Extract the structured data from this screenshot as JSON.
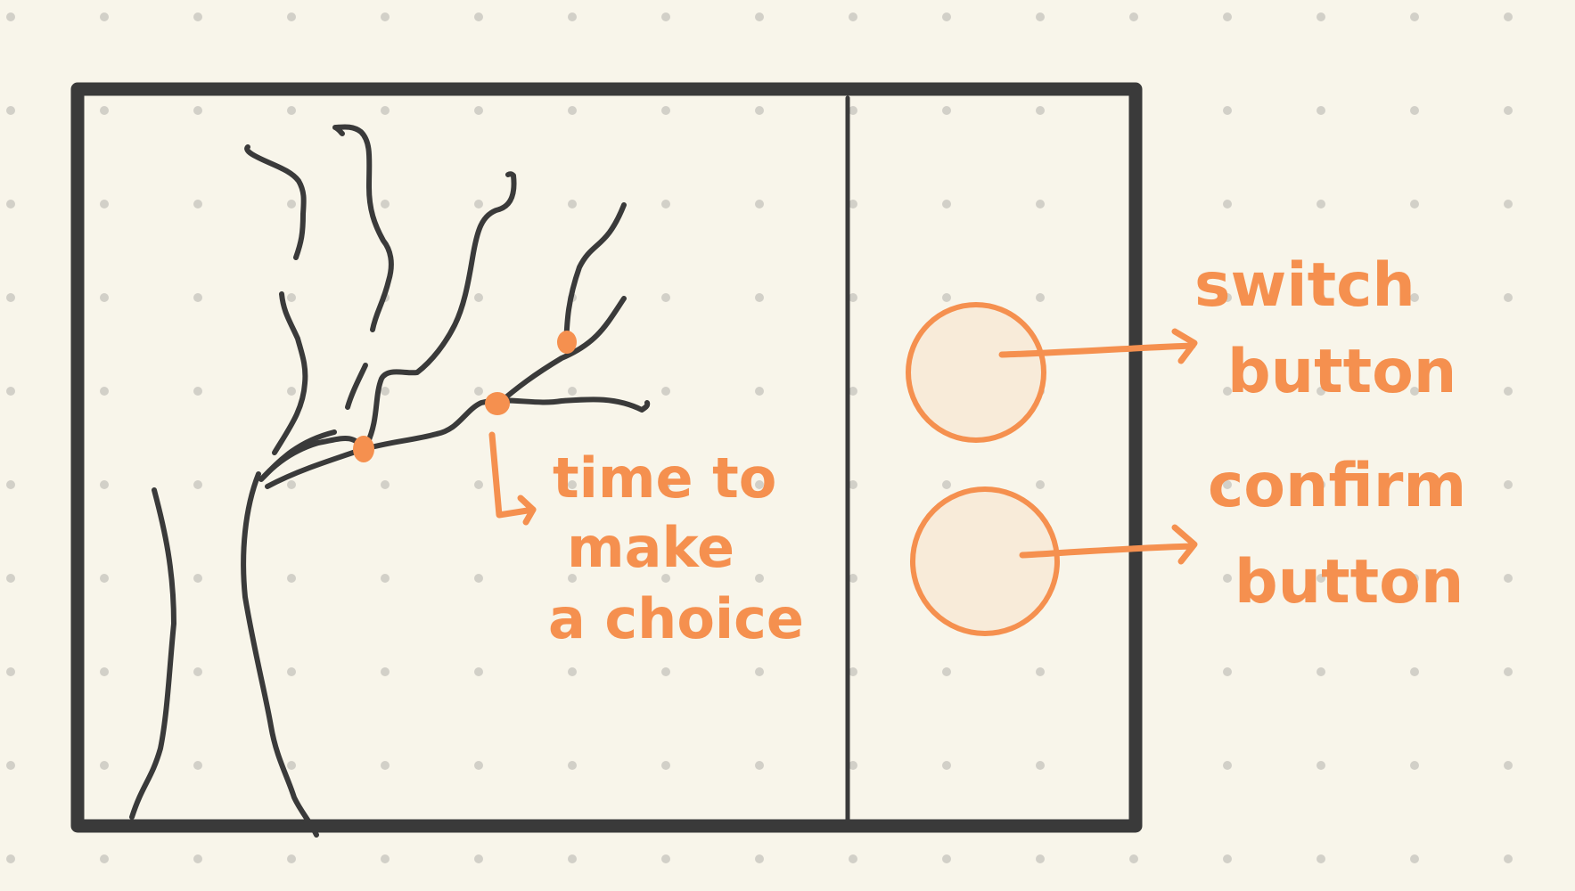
{
  "colors": {
    "background": "#f8f5ea",
    "dot": "#d2d0c8",
    "ink": "#3a3a3a",
    "accent": "#f5904f",
    "button_fill": "#f8ebd9"
  },
  "annotations": {
    "decision_label": [
      "time to",
      "make",
      "a choice"
    ],
    "switch_button": [
      "switch",
      "button"
    ],
    "confirm_button": [
      "confirm",
      "button"
    ]
  },
  "icons": {
    "decision_arrow": "hooked-arrow-icon",
    "pointer_arrow": "arrow-right-icon",
    "decision_point": "dot-icon"
  }
}
